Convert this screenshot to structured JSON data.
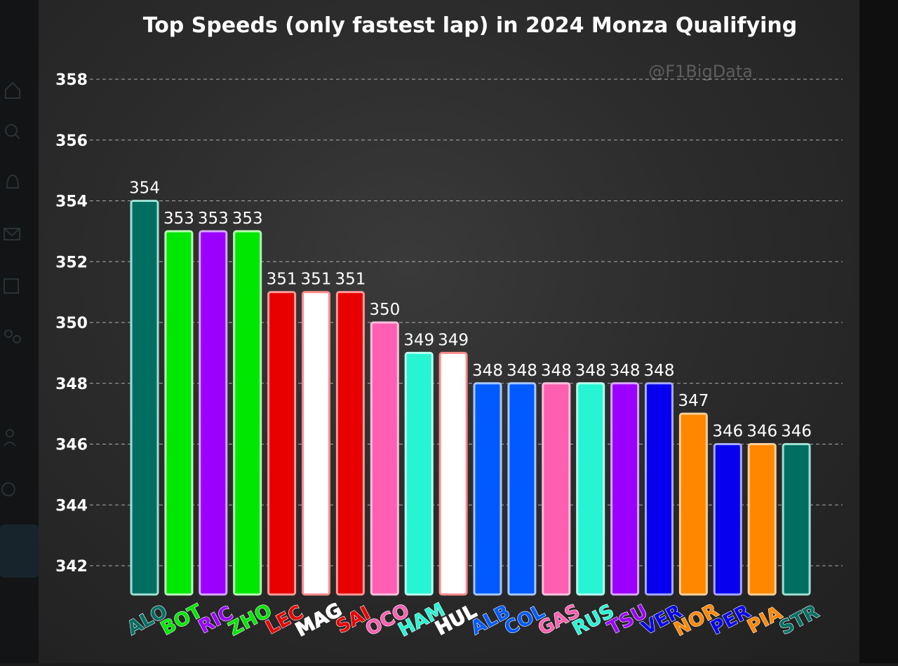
{
  "chart_data": {
    "type": "bar",
    "title": "Top Speeds (only fastest lap) in 2024 Monza Qualifying",
    "watermark": "@F1BigData",
    "ylim": [
      341,
      359
    ],
    "yticks": [
      342,
      344,
      346,
      348,
      350,
      352,
      354,
      356,
      358
    ],
    "grid": true,
    "categories": [
      "ALO",
      "BOT",
      "RIC",
      "ZHO",
      "LEC",
      "MAG",
      "SAI",
      "OCO",
      "HAM",
      "HUL",
      "ALB",
      "COL",
      "GAS",
      "RUS",
      "TSU",
      "VER",
      "NOR",
      "PER",
      "PIA",
      "STR"
    ],
    "values": [
      354,
      353,
      353,
      353,
      351,
      351,
      351,
      350,
      349,
      349,
      348,
      348,
      348,
      348,
      348,
      348,
      347,
      346,
      346,
      346
    ],
    "colors": [
      "#006f62",
      "#00e701",
      "#9b00ff",
      "#00e701",
      "#e80000",
      "#ffffff",
      "#e80000",
      "#ff5fb0",
      "#27f4d2",
      "#ffffff",
      "#005aff",
      "#005aff",
      "#ff5fb0",
      "#27f4d2",
      "#9b00ff",
      "#0600ef",
      "#ff8700",
      "#0600ef",
      "#ff8700",
      "#006f62"
    ],
    "outline_colors": [
      "#9fe0d3",
      "#b8ffb8",
      "#d7a8ff",
      "#b8ffb8",
      "#ff9a9a",
      "#ff8a8a",
      "#ff9a9a",
      "#ffc0de",
      "#b8fff0",
      "#ff8a8a",
      "#a8c8ff",
      "#a8c8ff",
      "#ffc0de",
      "#b8fff0",
      "#d7a8ff",
      "#a8a8ff",
      "#ffcf99",
      "#a8a8ff",
      "#ffcf99",
      "#9fe0d3"
    ]
  }
}
